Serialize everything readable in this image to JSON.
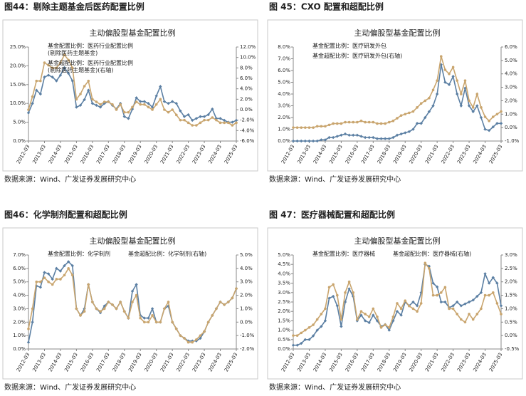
{
  "chart_data": [
    {
      "type": "line",
      "figure_title": "图44：剔除主题基金后医药配置比例",
      "title": "主动偏股型基金配置比例",
      "source": "数据来源：Wind、广发证券发展研究中心",
      "categories": [
        "2012-03",
        null,
        null,
        null,
        "2013-03",
        null,
        null,
        null,
        "2014-03",
        null,
        null,
        null,
        "2015-03",
        null,
        null,
        null,
        "2016-03",
        null,
        null,
        null,
        "2017-03",
        null,
        null,
        null,
        "2018-03",
        null,
        null,
        null,
        "2019-03",
        null,
        null,
        null,
        "2020-03",
        null,
        null,
        null,
        "2021-03",
        null,
        null,
        null,
        "2022-03",
        null,
        null,
        null,
        "2023-03",
        null,
        null,
        null,
        "2024-03",
        null,
        null,
        null,
        "2025-03"
      ],
      "ylim": [
        0,
        25
      ],
      "yticks": [
        {
          "value": 0,
          "label": "0.0%"
        },
        {
          "value": 5,
          "label": "5.0%"
        },
        {
          "value": 10,
          "label": "10.0%"
        },
        {
          "value": 15,
          "label": "15.0%"
        },
        {
          "value": 20,
          "label": "20.0%"
        },
        {
          "value": 25,
          "label": "25.0%"
        }
      ],
      "y2lim": [
        -6,
        12
      ],
      "y2ticks": [
        {
          "value": -6,
          "label": "-6.0%"
        },
        {
          "value": -4,
          "label": "-4.0%"
        },
        {
          "value": -2,
          "label": "-2.0%"
        },
        {
          "value": 0,
          "label": "0.0%"
        },
        {
          "value": 2,
          "label": "2.0%"
        },
        {
          "value": 4,
          "label": "4.0%"
        },
        {
          "value": 6,
          "label": "6.0%"
        },
        {
          "value": 8,
          "label": "8.0%"
        },
        {
          "value": 10,
          "label": "10.0%"
        },
        {
          "value": 12,
          "label": "12.0%"
        }
      ],
      "series": [
        {
          "name": "基金配置比例：医药行业配置比例(剔除医药主题基金)",
          "color": "#5b7fa3",
          "values": [
            7.5,
            10,
            13.5,
            12.5,
            17,
            17.5,
            17,
            16,
            17.5,
            19.5,
            18,
            16,
            9,
            9.5,
            11,
            13.5,
            10,
            9.5,
            9,
            10,
            10.5,
            9.5,
            8.5,
            10,
            6.5,
            6,
            8.5,
            11.5,
            10.5,
            10.5,
            10,
            9,
            12,
            14.5,
            10.5,
            10,
            10.5,
            10,
            8,
            6.5,
            7,
            5.5,
            6,
            6.5,
            6.5,
            7,
            8.5,
            6,
            6,
            5.5,
            5,
            5,
            5.5
          ]
        },
        {
          "name": "基金超配比例：医药行业配置比例(剔除医药主题基金)(右轴)",
          "color": "#c9a56e",
          "axis": "y2",
          "values": [
            0,
            2.5,
            5.5,
            5.5,
            9,
            8.5,
            8,
            8,
            9,
            10.5,
            9.5,
            8,
            2,
            3,
            4.5,
            5.5,
            2,
            1.5,
            1,
            1.5,
            1.5,
            1,
            0,
            1,
            -0.5,
            -0.5,
            0.5,
            1.5,
            1,
            1,
            0.5,
            0,
            1,
            2,
            0,
            -0.5,
            0,
            -1,
            -2,
            -2,
            -2.5,
            -3,
            -3,
            -2.5,
            -2,
            -2,
            -1.5,
            -2,
            -2.5,
            -2.5,
            -2.5,
            -3,
            -2.5
          ]
        }
      ]
    },
    {
      "type": "line",
      "figure_title": "图 45：CXO 配置和超配比例",
      "title": "主动偏股型基金配置比例",
      "source": "数据来源：Wind、广发证券发展研究中心",
      "categories": [
        "2012-03",
        null,
        null,
        null,
        "2013-03",
        null,
        null,
        null,
        "2014-03",
        null,
        null,
        null,
        "2015-03",
        null,
        null,
        null,
        "2016-03",
        null,
        null,
        null,
        "2017-03",
        null,
        null,
        null,
        "2018-03",
        null,
        null,
        null,
        "2019-03",
        null,
        null,
        null,
        "2020-03",
        null,
        null,
        null,
        "2021-03",
        null,
        null,
        null,
        "2022-03",
        null,
        null,
        null,
        "2023-03",
        null,
        null,
        null,
        "2024-03",
        null,
        null,
        null,
        "2025-03"
      ],
      "ylim": [
        0,
        8
      ],
      "yticks": [
        {
          "value": 0,
          "label": "0.0%"
        },
        {
          "value": 1,
          "label": "1.0%"
        },
        {
          "value": 2,
          "label": "2.0%"
        },
        {
          "value": 3,
          "label": "3.0%"
        },
        {
          "value": 4,
          "label": "4.0%"
        },
        {
          "value": 5,
          "label": "5.0%"
        },
        {
          "value": 6,
          "label": "6.0%"
        },
        {
          "value": 7,
          "label": "7.0%"
        },
        {
          "value": 8,
          "label": "8.0%"
        }
      ],
      "y2lim": [
        -1,
        6
      ],
      "y2ticks": [
        {
          "value": -1,
          "label": "-1.0%"
        },
        {
          "value": 0,
          "label": "0.0%"
        },
        {
          "value": 1,
          "label": "1.0%"
        },
        {
          "value": 2,
          "label": "2.0%"
        },
        {
          "value": 3,
          "label": "3.0%"
        },
        {
          "value": 4,
          "label": "4.0%"
        },
        {
          "value": 5,
          "label": "5.0%"
        },
        {
          "value": 6,
          "label": "6.0%"
        }
      ],
      "series": [
        {
          "name": "基金配置比例：医疗研发外包",
          "color": "#5b7fa3",
          "values": [
            0,
            0,
            0,
            0,
            0,
            0,
            0,
            0.1,
            0.1,
            0.3,
            0.3,
            0.4,
            0.5,
            0.6,
            0.5,
            0.5,
            0.5,
            0.4,
            0.3,
            0.3,
            0.3,
            0.2,
            0.2,
            0.2,
            0.2,
            0.3,
            0.5,
            0.6,
            0.7,
            0.8,
            1,
            1.5,
            1.5,
            2,
            2.5,
            3,
            4,
            6.5,
            5,
            4.8,
            5.5,
            4,
            3,
            4.5,
            3,
            2.5,
            3,
            2,
            1,
            0.9,
            1.2,
            1.5,
            1.5
          ]
        },
        {
          "name": "基金超配比例：医疗研发外包(右轴)",
          "color": "#c9a56e",
          "axis": "y2",
          "values": [
            0,
            0,
            0,
            0,
            0,
            0,
            0.1,
            0.1,
            0.1,
            0.2,
            0.3,
            0.3,
            0.3,
            0.4,
            0.4,
            0.4,
            0.4,
            0.5,
            0.4,
            0.4,
            0.4,
            0.3,
            0.3,
            0.3,
            0.4,
            0.5,
            0.7,
            0.9,
            1,
            1.1,
            1.2,
            1.5,
            1.8,
            2,
            2.2,
            2.8,
            3.5,
            5.3,
            4.3,
            4,
            4.5,
            3.5,
            2.5,
            3.5,
            2,
            1.5,
            2.5,
            1.5,
            0.8,
            0.5,
            0.8,
            1,
            1.2
          ]
        }
      ]
    },
    {
      "type": "line",
      "figure_title": "图46：化学制剂配置和超配比例",
      "title": "主动偏股型基金配置比例",
      "source": "数据来源：Wind、广发证券发展研究中心",
      "categories": [
        "2012-03",
        null,
        null,
        null,
        "2013-03",
        null,
        null,
        null,
        "2014-03",
        null,
        null,
        null,
        "2015-03",
        null,
        null,
        null,
        "2016-03",
        null,
        null,
        null,
        "2017-03",
        null,
        null,
        null,
        "2018-03",
        null,
        null,
        null,
        "2019-03",
        null,
        null,
        null,
        "2020-03",
        null,
        null,
        null,
        "2021-03",
        null,
        null,
        null,
        "2022-03",
        null,
        null,
        null,
        "2023-03",
        null,
        null,
        null,
        "2024-03",
        null,
        null,
        null,
        "2025-03"
      ],
      "ylim": [
        0,
        7
      ],
      "yticks": [
        {
          "value": 0,
          "label": "0.0%"
        },
        {
          "value": 1,
          "label": "1.0%"
        },
        {
          "value": 2,
          "label": "2.0%"
        },
        {
          "value": 3,
          "label": "3.0%"
        },
        {
          "value": 4,
          "label": "4.0%"
        },
        {
          "value": 5,
          "label": "5.0%"
        },
        {
          "value": 6,
          "label": "6.0%"
        },
        {
          "value": 7,
          "label": "7.0%"
        }
      ],
      "y2lim": [
        -2,
        5
      ],
      "y2ticks": [
        {
          "value": -2,
          "label": "-2.0%"
        },
        {
          "value": -1,
          "label": "-1.0%"
        },
        {
          "value": 0,
          "label": "0.0%"
        },
        {
          "value": 1,
          "label": "1.0%"
        },
        {
          "value": 2,
          "label": "2.0%"
        },
        {
          "value": 3,
          "label": "3.0%"
        },
        {
          "value": 4,
          "label": "4.0%"
        },
        {
          "value": 5,
          "label": "5.0%"
        }
      ],
      "series": [
        {
          "name": "基金配置比例：化学制剂",
          "color": "#5b7fa3",
          "values": [
            0.5,
            2,
            4.7,
            4.6,
            5.7,
            5.6,
            5.2,
            6,
            5.8,
            6.2,
            6.5,
            6.2,
            3,
            2.5,
            3,
            4.8,
            3.5,
            3,
            2.7,
            3.2,
            3.5,
            3.3,
            3,
            3.5,
            2.8,
            2.3,
            4.3,
            4.8,
            2.5,
            2.3,
            2.3,
            3,
            2,
            2,
            3,
            3.2,
            2,
            1.5,
            1,
            0.8,
            0.6,
            0.6,
            0.6,
            0.8,
            1.3,
            2,
            2.5,
            3,
            3.5,
            3.3,
            3.5,
            3.8,
            4.5
          ]
        },
        {
          "name": "基金超配比例：化学制剂(右轴)",
          "color": "#c9a56e",
          "axis": "y2",
          "values": [
            -0.5,
            1,
            3,
            3,
            3.3,
            3,
            2.8,
            3.2,
            3.2,
            3.5,
            4,
            3.5,
            1,
            0.5,
            0.8,
            2.8,
            1.5,
            1,
            0.8,
            1,
            1.5,
            1.3,
            1,
            1.5,
            0.8,
            0.3,
            1.5,
            2,
            0.3,
            0,
            0,
            0.5,
            0,
            0,
            1,
            1.5,
            0,
            -0.5,
            -1,
            -1.2,
            -1.5,
            -1.5,
            -1.3,
            -1,
            -0.7,
            0,
            0.5,
            1,
            1.5,
            1.3,
            1.5,
            1.8,
            2.5
          ]
        }
      ]
    },
    {
      "type": "line",
      "figure_title": "图 47：医疗器械配置和超配比例",
      "title": "主动偏股型基金配置比例",
      "source": "数据来源：Wind、广发证券发展研究中心",
      "categories": [
        "2012-03",
        null,
        null,
        null,
        "2013-03",
        null,
        null,
        null,
        "2014-03",
        null,
        null,
        null,
        "2015-03",
        null,
        null,
        null,
        "2016-03",
        null,
        null,
        null,
        "2017-03",
        null,
        null,
        null,
        "2018-03",
        null,
        null,
        null,
        "2019-03",
        null,
        null,
        null,
        "2020-03",
        null,
        null,
        null,
        "2021-03",
        null,
        null,
        null,
        "2022-03",
        null,
        null,
        null,
        "2023-03",
        null,
        null,
        null,
        "2024-03",
        null,
        null,
        null,
        "2025-03"
      ],
      "ylim": [
        0,
        5
      ],
      "yticks": [
        {
          "value": 0,
          "label": "0.0%"
        },
        {
          "value": 0.5,
          "label": "0.5%"
        },
        {
          "value": 1,
          "label": "1.0%"
        },
        {
          "value": 1.5,
          "label": "1.5%"
        },
        {
          "value": 2,
          "label": "2.0%"
        },
        {
          "value": 2.5,
          "label": "2.5%"
        },
        {
          "value": 3,
          "label": "3.0%"
        },
        {
          "value": 3.5,
          "label": "3.5%"
        },
        {
          "value": 4,
          "label": "4.0%"
        },
        {
          "value": 4.5,
          "label": "4.5%"
        },
        {
          "value": 5,
          "label": "5.0%"
        }
      ],
      "y2lim": [
        -0.5,
        3
      ],
      "y2ticks": [
        {
          "value": -0.5,
          "label": "-0.5%"
        },
        {
          "value": 0,
          "label": "0.0%"
        },
        {
          "value": 0.5,
          "label": "0.5%"
        },
        {
          "value": 1,
          "label": "1.0%"
        },
        {
          "value": 1.5,
          "label": "1.5%"
        },
        {
          "value": 2,
          "label": "2.0%"
        },
        {
          "value": 2.5,
          "label": "2.5%"
        },
        {
          "value": 3,
          "label": "3.0%"
        }
      ],
      "series": [
        {
          "name": "基金配置比例：医疗器械",
          "color": "#5b7fa3",
          "values": [
            0.2,
            0.2,
            0.3,
            0.5,
            0.5,
            0.7,
            1,
            1.2,
            1.5,
            2.7,
            2.8,
            2.3,
            1.2,
            2.5,
            3.2,
            2.8,
            1.5,
            1.8,
            1.5,
            1.4,
            1.8,
            1.5,
            1.2,
            1.3,
            1,
            1.5,
            2,
            1.8,
            2.5,
            2.3,
            2.5,
            2.3,
            3,
            4.5,
            4.4,
            3.5,
            3.3,
            2.5,
            2.5,
            2.2,
            2.3,
            2.5,
            2.3,
            2.4,
            2.5,
            2.6,
            2.8,
            3,
            4,
            3.5,
            3.8,
            3.5,
            2.3
          ]
        },
        {
          "name": "基金超配比例：医疗器械(右轴)",
          "color": "#c9a56e",
          "axis": "y2",
          "values": [
            0,
            0,
            0.1,
            0.2,
            0.3,
            0.4,
            0.6,
            0.8,
            1,
            1.8,
            1.9,
            1.5,
            0.6,
            1.6,
            2,
            1.6,
            0.6,
            0.9,
            0.8,
            0.7,
            1,
            0.7,
            0.3,
            0.4,
            0.3,
            0.7,
            1.2,
            1,
            1.3,
            1.1,
            1,
            0.9,
            1.2,
            2.7,
            2.5,
            1.5,
            1.5,
            1.6,
            1.8,
            1,
            1,
            0.8,
            0.6,
            0.5,
            0.8,
            0.6,
            0.8,
            1,
            1.5,
            1.5,
            1.6,
            1.2,
            0.8
          ]
        }
      ]
    }
  ]
}
